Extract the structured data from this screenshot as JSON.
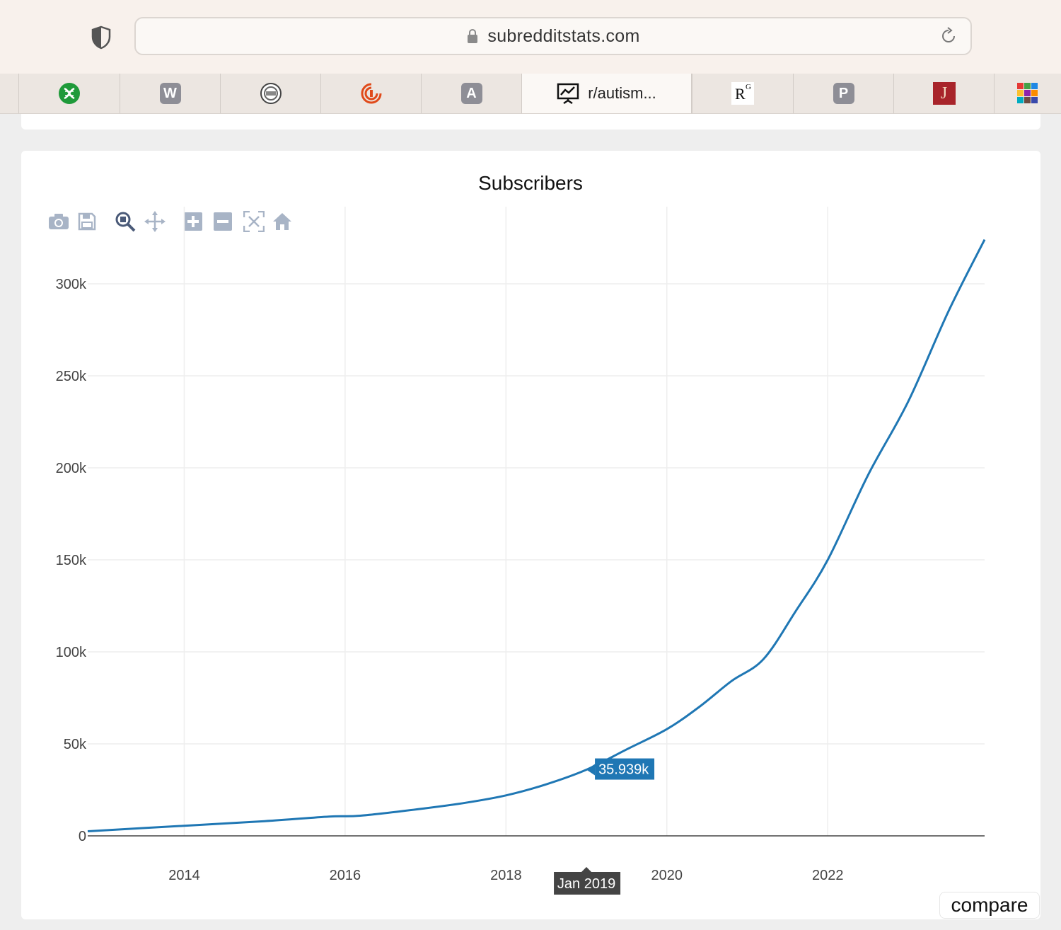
{
  "browser": {
    "url": "subredditstats.com",
    "tabs": [
      {
        "label": "",
        "icon": "green-helix-icon"
      },
      {
        "label": "",
        "icon": "letter-w-icon",
        "glyph": "W"
      },
      {
        "label": "",
        "icon": "round-logo-icon"
      },
      {
        "label": "",
        "icon": "orange-spiral-icon"
      },
      {
        "label": "",
        "icon": "letter-a-icon",
        "glyph": "A"
      },
      {
        "label": "r/autism...",
        "icon": "presentation-chart-icon"
      },
      {
        "label": "",
        "icon": "researchgate-icon",
        "glyph": "R"
      },
      {
        "label": "",
        "icon": "letter-p-icon",
        "glyph": "P"
      },
      {
        "label": "",
        "icon": "red-j-icon",
        "glyph": "J"
      },
      {
        "label": "",
        "icon": "color-grid-icon"
      }
    ]
  },
  "chart": {
    "title": "Subscribers",
    "compare_label": "compare",
    "hover": {
      "value_label": "35.939k",
      "x_label": "Jan 2019"
    },
    "colors": {
      "line": "#1f77b4",
      "hover_bg": "#1f77b4",
      "xlabel_bg": "#444444"
    }
  },
  "chart_data": {
    "type": "line",
    "title": "Subscribers",
    "xlabel": "",
    "ylabel": "",
    "xlim": [
      2012.8,
      2023.95
    ],
    "ylim": [
      0,
      330000
    ],
    "xticks": [
      2014,
      2016,
      2018,
      2020,
      2022
    ],
    "xtick_labels": [
      "2014",
      "2016",
      "2018",
      "2020",
      "2022"
    ],
    "yticks": [
      0,
      50000,
      100000,
      150000,
      200000,
      250000,
      300000
    ],
    "ytick_labels": [
      "0",
      "50k",
      "100k",
      "150k",
      "200k",
      "250k",
      "300k"
    ],
    "grid": true,
    "series": [
      {
        "x": [
          2012.8,
          2014.0,
          2015.0,
          2015.8,
          2016.2,
          2017.0,
          2017.5,
          2018.0,
          2018.5,
          2019.0,
          2019.5,
          2020.0,
          2020.4,
          2020.8,
          2021.2,
          2021.6,
          2022.0,
          2022.5,
          2023.0,
          2023.5,
          2023.95
        ],
        "y": [
          2500,
          5500,
          8000,
          10500,
          11000,
          15000,
          18000,
          22000,
          28000,
          35939,
          47000,
          58000,
          70000,
          84000,
          96000,
          122000,
          150000,
          196000,
          236000,
          285000,
          324000
        ]
      }
    ]
  }
}
